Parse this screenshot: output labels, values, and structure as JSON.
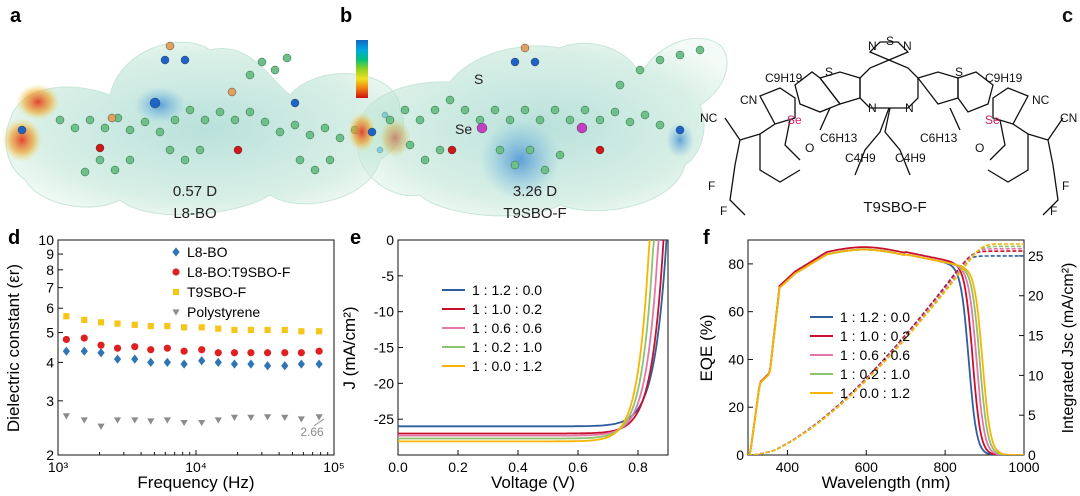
{
  "panels": {
    "a": {
      "letter": "a",
      "dipole": "0.57 D",
      "molecule": "L8-BO"
    },
    "b": {
      "letter": "b",
      "dipole": "3.26 D",
      "molecule": "T9SBO-F",
      "atom_labels": [
        "S",
        "Se"
      ]
    },
    "c": {
      "letter": "c",
      "molecule": "T9SBO-F",
      "atoms": [
        "N",
        "N",
        "S",
        "S",
        "S",
        "N",
        "N",
        "Se",
        "Se",
        "NC",
        "CN",
        "NC",
        "CN",
        "O",
        "O",
        "F",
        "F",
        "F",
        "F"
      ],
      "substituents": [
        "C9H19",
        "C9H19",
        "C6H13",
        "C4H9",
        "C6H13",
        "C4H9"
      ]
    }
  },
  "colorbar": {
    "colors": [
      "#1565c0",
      "#00a8e0",
      "#00c080",
      "#90d020",
      "#f0e020",
      "#f08010",
      "#d01010"
    ]
  },
  "chart_data": [
    {
      "panel": "d",
      "type": "scatter",
      "xscale": "log",
      "yscale": "log",
      "xlabel": "Frequency (Hz)",
      "ylabel": "Dielectric constant (εr)",
      "xlim": [
        1000,
        100000
      ],
      "ylim": [
        2,
        10
      ],
      "xticks": [
        "10³",
        "10⁴",
        "10⁵"
      ],
      "yticks": [
        "2",
        "3",
        "4",
        "5",
        "6",
        "7",
        "8",
        "9",
        "10"
      ],
      "legend_position": "top-right",
      "annotation": "2.66",
      "series": [
        {
          "name": "L8-BO",
          "color": "#2e75b6",
          "marker": "diamond",
          "x": [
            1150,
            1550,
            2050,
            2700,
            3600,
            4700,
            6200,
            8200,
            11000,
            14500,
            19000,
            25000,
            33000,
            44000,
            58000,
            78000
          ],
          "y": [
            4.35,
            4.35,
            4.3,
            4.1,
            4.1,
            4.0,
            4.0,
            3.95,
            4.05,
            4.0,
            3.95,
            3.95,
            3.9,
            3.9,
            3.95,
            3.95
          ]
        },
        {
          "name": "L8-BO:T9SBO-F",
          "color": "#e02020",
          "marker": "circle",
          "x": [
            1150,
            1550,
            2050,
            2700,
            3600,
            4700,
            6200,
            8200,
            11000,
            14500,
            19000,
            25000,
            33000,
            44000,
            58000,
            78000
          ],
          "y": [
            4.75,
            4.8,
            4.55,
            4.45,
            4.5,
            4.4,
            4.45,
            4.35,
            4.4,
            4.3,
            4.3,
            4.3,
            4.3,
            4.3,
            4.3,
            4.35
          ]
        },
        {
          "name": "T9SBO-F",
          "color": "#f5c518",
          "marker": "square",
          "x": [
            1150,
            1550,
            2050,
            2700,
            3600,
            4700,
            6200,
            8200,
            11000,
            14500,
            19000,
            25000,
            33000,
            44000,
            58000,
            78000
          ],
          "y": [
            5.65,
            5.5,
            5.4,
            5.35,
            5.3,
            5.25,
            5.25,
            5.2,
            5.2,
            5.15,
            5.1,
            5.1,
            5.1,
            5.1,
            5.05,
            5.05
          ]
        },
        {
          "name": "Polystyrene",
          "color": "#8c8c8c",
          "marker": "triangle-down",
          "x": [
            1150,
            1550,
            2050,
            2700,
            3600,
            4700,
            6200,
            8200,
            11000,
            14500,
            19000,
            25000,
            33000,
            44000,
            58000,
            78000
          ],
          "y": [
            2.68,
            2.6,
            2.48,
            2.6,
            2.6,
            2.58,
            2.6,
            2.55,
            2.55,
            2.6,
            2.65,
            2.65,
            2.66,
            2.65,
            2.62,
            2.66
          ]
        }
      ]
    },
    {
      "panel": "e",
      "type": "line",
      "xlabel": "Voltage (V)",
      "ylabel": "J (mA/cm²)",
      "xlim": [
        0,
        0.9
      ],
      "ylim": [
        -30,
        0
      ],
      "xticks": [
        "0.0",
        "0.2",
        "0.4",
        "0.6",
        "0.8"
      ],
      "yticks": [
        "0",
        "-5",
        "-10",
        "-15",
        "-20",
        "-25"
      ],
      "legend_position": "center-left",
      "series": [
        {
          "name": "1 : 1.2 : 0.0",
          "color": "#2e5e9e",
          "jsc": 26.0,
          "voc": 0.895,
          "ideality": 0.04
        },
        {
          "name": "1 : 1.0 : 0.2",
          "color": "#c8102e",
          "jsc": 27.0,
          "voc": 0.885,
          "ideality": 0.039
        },
        {
          "name": "1 : 0.6 : 0.6",
          "color": "#e377a8",
          "jsc": 27.3,
          "voc": 0.868,
          "ideality": 0.038
        },
        {
          "name": "1 : 0.2 : 1.0",
          "color": "#8dc26f",
          "jsc": 27.7,
          "voc": 0.852,
          "ideality": 0.037
        },
        {
          "name": "1 : 0.0 : 1.2",
          "color": "#f7b500",
          "jsc": 28.1,
          "voc": 0.838,
          "ideality": 0.036
        }
      ]
    },
    {
      "panel": "f",
      "type": "line",
      "xlabel": "Wavelength (nm)",
      "ylabel": "EQE (%)",
      "y2label": "Integrated Jsc (mA/cm²)",
      "xlim": [
        300,
        1000
      ],
      "ylim": [
        0,
        90
      ],
      "y2lim": [
        0,
        27
      ],
      "xticks": [
        "400",
        "600",
        "800",
        "1000"
      ],
      "yticks": [
        "0",
        "20",
        "40",
        "60",
        "80"
      ],
      "y2ticks": [
        "0",
        "5",
        "10",
        "15",
        "20",
        "25"
      ],
      "legend_position": "center",
      "series": [
        {
          "name": "1 : 1.2 : 0.0",
          "color": "#2e5e9e",
          "cutoff": 860,
          "jsc_final": 25.0,
          "eqe_peak": 86
        },
        {
          "name": "1 : 1.0 : 0.2",
          "color": "#c8102e",
          "cutoff": 870,
          "jsc_final": 25.6,
          "eqe_peak": 87
        },
        {
          "name": "1 : 0.6 : 0.6",
          "color": "#e377a8",
          "cutoff": 880,
          "jsc_final": 25.9,
          "eqe_peak": 86
        },
        {
          "name": "1 : 0.2 : 1.0",
          "color": "#8dc26f",
          "cutoff": 888,
          "jsc_final": 26.2,
          "eqe_peak": 86
        },
        {
          "name": "1 : 0.0 : 1.2",
          "color": "#f7b500",
          "cutoff": 895,
          "jsc_final": 26.5,
          "eqe_peak": 86
        }
      ]
    }
  ]
}
